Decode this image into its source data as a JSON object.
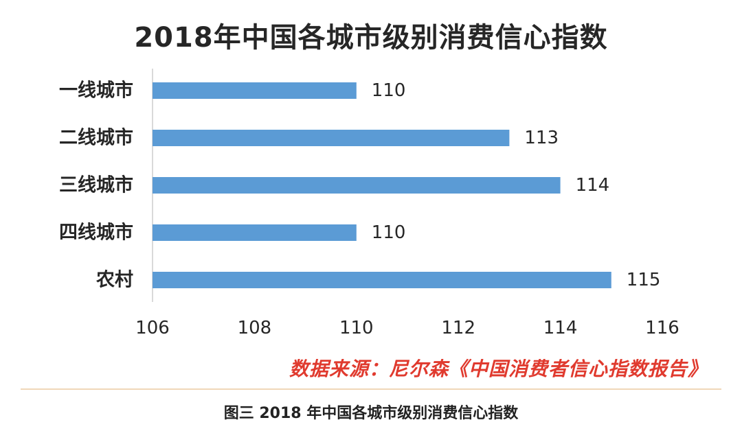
{
  "chart_data": {
    "type": "bar",
    "orientation": "horizontal",
    "title": "2018年中国各城市级别消费信心指数",
    "categories": [
      "一线城市",
      "二线城市",
      "三线城市",
      "四线城市",
      "农村"
    ],
    "values": [
      110,
      113,
      114,
      110,
      115
    ],
    "x_ticks": [
      "106",
      "108",
      "110",
      "112",
      "114",
      "116"
    ],
    "xlim": [
      106,
      116
    ],
    "bar_color": "#5b9bd5",
    "grid": false,
    "legend": "none"
  },
  "source_note": "数据来源：尼尔森《中国消费者信心指数报告》",
  "caption": "图三  2018 年中国各城市级别消费信心指数",
  "colors": {
    "bar": "#5b9bd5",
    "source_text": "#e03a2e",
    "divider": "#f0d7b8"
  }
}
